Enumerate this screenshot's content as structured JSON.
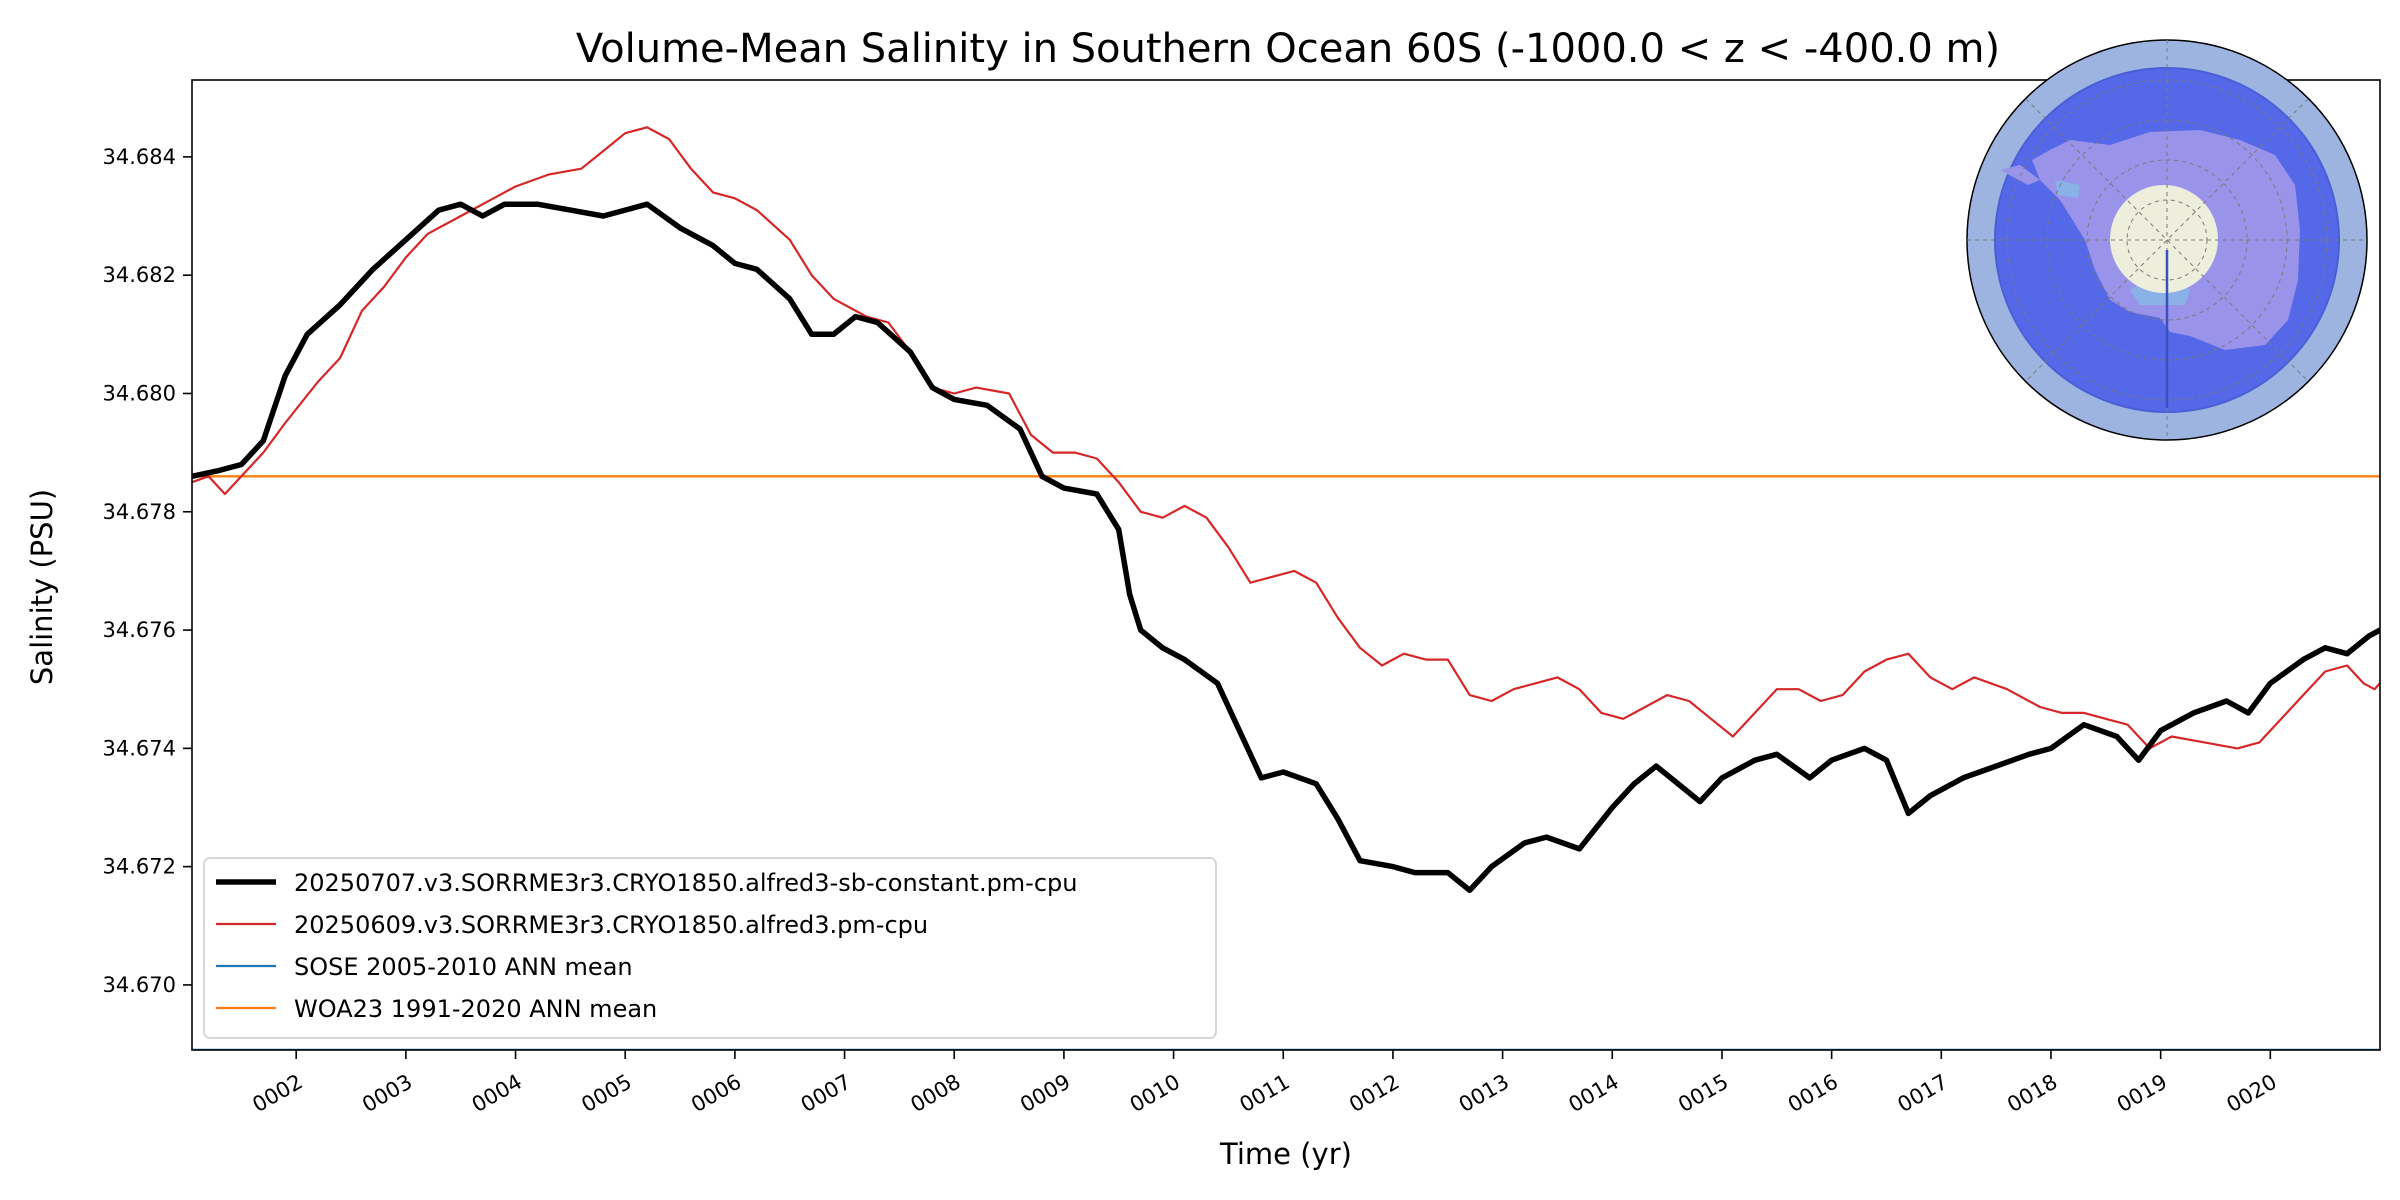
{
  "chart_data": {
    "type": "line",
    "title": "Volume-Mean Salinity in Southern Ocean 60S (-1000.0 < z < -400.0 m)",
    "xlabel": "Time (yr)",
    "ylabel": "Salinity (PSU)",
    "xlim": [
      1.05,
      21.0
    ],
    "ylim": [
      34.6689,
      34.6853
    ],
    "xticks": [
      2,
      3,
      4,
      5,
      6,
      7,
      8,
      9,
      10,
      11,
      12,
      13,
      14,
      15,
      16,
      17,
      18,
      19,
      20
    ],
    "xtick_labels": [
      "0002",
      "0003",
      "0004",
      "0005",
      "0006",
      "0007",
      "0008",
      "0009",
      "0010",
      "0011",
      "0012",
      "0013",
      "0014",
      "0015",
      "0016",
      "0017",
      "0018",
      "0019",
      "0020"
    ],
    "yticks": [
      34.67,
      34.672,
      34.674,
      34.676,
      34.678,
      34.68,
      34.682,
      34.684
    ],
    "ytick_labels": [
      "34.670",
      "34.672",
      "34.674",
      "34.676",
      "34.678",
      "34.680",
      "34.682",
      "34.684"
    ],
    "grid": false,
    "legend_position": "lower-left",
    "series": [
      {
        "name": "20250707.v3.SORRME3r3.CRYO1850.alfred3-sb-constant.pm-cpu",
        "color": "#000000",
        "style": "thick-line",
        "points": [
          [
            1.05,
            34.6786
          ],
          [
            1.3,
            34.6787
          ],
          [
            1.5,
            34.6788
          ],
          [
            1.7,
            34.6792
          ],
          [
            1.9,
            34.6803
          ],
          [
            2.1,
            34.681
          ],
          [
            2.4,
            34.6815
          ],
          [
            2.7,
            34.6821
          ],
          [
            3.0,
            34.6826
          ],
          [
            3.3,
            34.6831
          ],
          [
            3.5,
            34.6832
          ],
          [
            3.7,
            34.683
          ],
          [
            3.9,
            34.6832
          ],
          [
            4.2,
            34.6832
          ],
          [
            4.5,
            34.6831
          ],
          [
            4.8,
            34.683
          ],
          [
            5.0,
            34.6831
          ],
          [
            5.2,
            34.6832
          ],
          [
            5.5,
            34.6828
          ],
          [
            5.8,
            34.6825
          ],
          [
            6.0,
            34.6822
          ],
          [
            6.2,
            34.6821
          ],
          [
            6.5,
            34.6816
          ],
          [
            6.7,
            34.681
          ],
          [
            6.9,
            34.681
          ],
          [
            7.1,
            34.6813
          ],
          [
            7.3,
            34.6812
          ],
          [
            7.6,
            34.6807
          ],
          [
            7.8,
            34.6801
          ],
          [
            8.0,
            34.6799
          ],
          [
            8.3,
            34.6798
          ],
          [
            8.6,
            34.6794
          ],
          [
            8.8,
            34.6786
          ],
          [
            9.0,
            34.6784
          ],
          [
            9.3,
            34.6783
          ],
          [
            9.5,
            34.6777
          ],
          [
            9.6,
            34.6766
          ],
          [
            9.7,
            34.676
          ],
          [
            9.9,
            34.6757
          ],
          [
            10.1,
            34.6755
          ],
          [
            10.4,
            34.6751
          ],
          [
            10.6,
            34.6743
          ],
          [
            10.8,
            34.6735
          ],
          [
            11.0,
            34.6736
          ],
          [
            11.3,
            34.6734
          ],
          [
            11.5,
            34.6728
          ],
          [
            11.7,
            34.6721
          ],
          [
            12.0,
            34.672
          ],
          [
            12.2,
            34.6719
          ],
          [
            12.5,
            34.6719
          ],
          [
            12.7,
            34.6716
          ],
          [
            12.9,
            34.672
          ],
          [
            13.2,
            34.6724
          ],
          [
            13.4,
            34.6725
          ],
          [
            13.7,
            34.6723
          ],
          [
            14.0,
            34.673
          ],
          [
            14.2,
            34.6734
          ],
          [
            14.4,
            34.6737
          ],
          [
            14.6,
            34.6734
          ],
          [
            14.8,
            34.6731
          ],
          [
            15.0,
            34.6735
          ],
          [
            15.3,
            34.6738
          ],
          [
            15.5,
            34.6739
          ],
          [
            15.8,
            34.6735
          ],
          [
            16.0,
            34.6738
          ],
          [
            16.3,
            34.674
          ],
          [
            16.5,
            34.6738
          ],
          [
            16.7,
            34.6729
          ],
          [
            16.9,
            34.6732
          ],
          [
            17.2,
            34.6735
          ],
          [
            17.5,
            34.6737
          ],
          [
            17.8,
            34.6739
          ],
          [
            18.0,
            34.674
          ],
          [
            18.3,
            34.6744
          ],
          [
            18.6,
            34.6742
          ],
          [
            18.8,
            34.6738
          ],
          [
            19.0,
            34.6743
          ],
          [
            19.3,
            34.6746
          ],
          [
            19.6,
            34.6748
          ],
          [
            19.8,
            34.6746
          ],
          [
            20.0,
            34.6751
          ],
          [
            20.3,
            34.6755
          ],
          [
            20.5,
            34.6757
          ],
          [
            20.7,
            34.6756
          ],
          [
            20.9,
            34.6759
          ],
          [
            21.0,
            34.676
          ]
        ]
      },
      {
        "name": "20250609.v3.SORRME3r3.CRYO1850.alfred3.pm-cpu",
        "color": "#d62728",
        "style": "line",
        "points": [
          [
            1.05,
            34.6785
          ],
          [
            1.2,
            34.6786
          ],
          [
            1.35,
            34.6783
          ],
          [
            1.5,
            34.6786
          ],
          [
            1.7,
            34.679
          ],
          [
            1.9,
            34.6795
          ],
          [
            2.2,
            34.6802
          ],
          [
            2.4,
            34.6806
          ],
          [
            2.6,
            34.6814
          ],
          [
            2.8,
            34.6818
          ],
          [
            3.0,
            34.6823
          ],
          [
            3.2,
            34.6827
          ],
          [
            3.4,
            34.6829
          ],
          [
            3.6,
            34.6831
          ],
          [
            3.8,
            34.6833
          ],
          [
            4.0,
            34.6835
          ],
          [
            4.3,
            34.6837
          ],
          [
            4.6,
            34.6838
          ],
          [
            4.8,
            34.6841
          ],
          [
            5.0,
            34.6844
          ],
          [
            5.2,
            34.6845
          ],
          [
            5.4,
            34.6843
          ],
          [
            5.6,
            34.6838
          ],
          [
            5.8,
            34.6834
          ],
          [
            6.0,
            34.6833
          ],
          [
            6.2,
            34.6831
          ],
          [
            6.5,
            34.6826
          ],
          [
            6.7,
            34.682
          ],
          [
            6.9,
            34.6816
          ],
          [
            7.2,
            34.6813
          ],
          [
            7.4,
            34.6812
          ],
          [
            7.6,
            34.6807
          ],
          [
            7.8,
            34.6801
          ],
          [
            8.0,
            34.68
          ],
          [
            8.2,
            34.6801
          ],
          [
            8.5,
            34.68
          ],
          [
            8.7,
            34.6793
          ],
          [
            8.9,
            34.679
          ],
          [
            9.1,
            34.679
          ],
          [
            9.3,
            34.6789
          ],
          [
            9.5,
            34.6785
          ],
          [
            9.7,
            34.678
          ],
          [
            9.9,
            34.6779
          ],
          [
            10.1,
            34.6781
          ],
          [
            10.3,
            34.6779
          ],
          [
            10.5,
            34.6774
          ],
          [
            10.7,
            34.6768
          ],
          [
            10.9,
            34.6769
          ],
          [
            11.1,
            34.677
          ],
          [
            11.3,
            34.6768
          ],
          [
            11.5,
            34.6762
          ],
          [
            11.7,
            34.6757
          ],
          [
            11.9,
            34.6754
          ],
          [
            12.1,
            34.6756
          ],
          [
            12.3,
            34.6755
          ],
          [
            12.5,
            34.6755
          ],
          [
            12.7,
            34.6749
          ],
          [
            12.9,
            34.6748
          ],
          [
            13.1,
            34.675
          ],
          [
            13.3,
            34.6751
          ],
          [
            13.5,
            34.6752
          ],
          [
            13.7,
            34.675
          ],
          [
            13.9,
            34.6746
          ],
          [
            14.1,
            34.6745
          ],
          [
            14.3,
            34.6747
          ],
          [
            14.5,
            34.6749
          ],
          [
            14.7,
            34.6748
          ],
          [
            14.9,
            34.6745
          ],
          [
            15.1,
            34.6742
          ],
          [
            15.3,
            34.6746
          ],
          [
            15.5,
            34.675
          ],
          [
            15.7,
            34.675
          ],
          [
            15.9,
            34.6748
          ],
          [
            16.1,
            34.6749
          ],
          [
            16.3,
            34.6753
          ],
          [
            16.5,
            34.6755
          ],
          [
            16.7,
            34.6756
          ],
          [
            16.9,
            34.6752
          ],
          [
            17.1,
            34.675
          ],
          [
            17.3,
            34.6752
          ],
          [
            17.6,
            34.675
          ],
          [
            17.9,
            34.6747
          ],
          [
            18.1,
            34.6746
          ],
          [
            18.3,
            34.6746
          ],
          [
            18.5,
            34.6745
          ],
          [
            18.7,
            34.6744
          ],
          [
            18.9,
            34.674
          ],
          [
            19.1,
            34.6742
          ],
          [
            19.4,
            34.6741
          ],
          [
            19.7,
            34.674
          ],
          [
            19.9,
            34.6741
          ],
          [
            20.1,
            34.6745
          ],
          [
            20.3,
            34.6749
          ],
          [
            20.5,
            34.6753
          ],
          [
            20.7,
            34.6754
          ],
          [
            20.85,
            34.6751
          ],
          [
            20.95,
            34.675
          ],
          [
            21.0,
            34.6751
          ]
        ]
      },
      {
        "name": "SOSE 2005-2010 ANN mean",
        "color": "#1f77b4",
        "style": "line",
        "constant": 34.6689
      },
      {
        "name": "WOA23 1991-2020 ANN mean",
        "color": "#ff7f0e",
        "style": "line",
        "constant": 34.6786
      }
    ]
  },
  "inset_map": {
    "icon": "antarctica-polar-map",
    "colors": {
      "outer_ring": "#9db4e0",
      "ocean_region": "#5568e8",
      "land": "#9a93ea",
      "pole_cap": "#eeeedc",
      "shelf": "#8ab2e6"
    }
  }
}
